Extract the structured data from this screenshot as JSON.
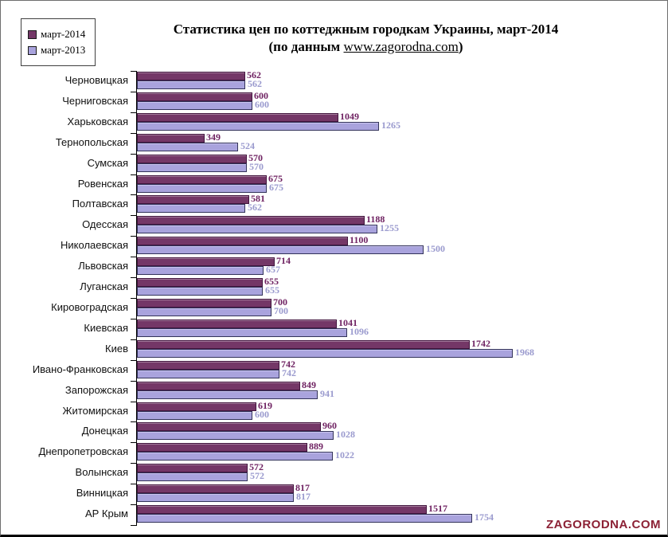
{
  "title": {
    "line1": "Статистика  цен по коттеджным городкам Украины, март-2014",
    "line2_prefix": "(по данным ",
    "line2_link": "www.zagorodna.com",
    "line2_suffix": ")"
  },
  "legend": [
    {
      "label": "март-2014",
      "color": "#743767"
    },
    {
      "label": "март-2013",
      "color": "#a9a3dd"
    }
  ],
  "watermark": "ZAGORODNA.COM",
  "colors": {
    "bar_2014_fill": "#743767",
    "bar_2014_border": "#42153e",
    "bar_2013_fill": "#a9a3dd",
    "bar_2013_border": "#33335a",
    "value_2014_text": "#6f2262",
    "value_2013_text": "#9a9ace",
    "watermark_text": "#8c2135"
  },
  "chart_data": {
    "type": "bar",
    "orientation": "horizontal",
    "title": "Статистика цен по коттеджным городкам Украины, март-2014 (по данным www.zagorodna.com)",
    "legend_position": "top-left",
    "grid": false,
    "value_labels": true,
    "xlim": [
      0,
      2000
    ],
    "categories": [
      "Черновицкая",
      "Черниговская",
      "Харьковская",
      "Тернопольская",
      "Сумская",
      "Ровенская",
      "Полтавская",
      "Одесская",
      "Николаевская",
      "Львовская",
      "Луганская",
      "Кировоградская",
      "Киевская",
      "Киев",
      "Ивано-Франковская",
      "Запорожская",
      "Житомирская",
      "Донецкая",
      "Днепропетровская",
      "Волынская",
      "Винницкая",
      "АР Крым"
    ],
    "series": [
      {
        "name": "март-2014",
        "color": "#743767",
        "values": [
          562,
          600,
          1049,
          349,
          570,
          675,
          581,
          1188,
          1100,
          714,
          655,
          700,
          1041,
          1742,
          742,
          849,
          619,
          960,
          889,
          572,
          817,
          1517
        ]
      },
      {
        "name": "март-2013",
        "color": "#a9a3dd",
        "values": [
          562,
          600,
          1265,
          524,
          570,
          675,
          562,
          1255,
          1500,
          657,
          655,
          700,
          1096,
          1968,
          742,
          941,
          600,
          1028,
          1022,
          572,
          817,
          1754
        ]
      }
    ]
  }
}
